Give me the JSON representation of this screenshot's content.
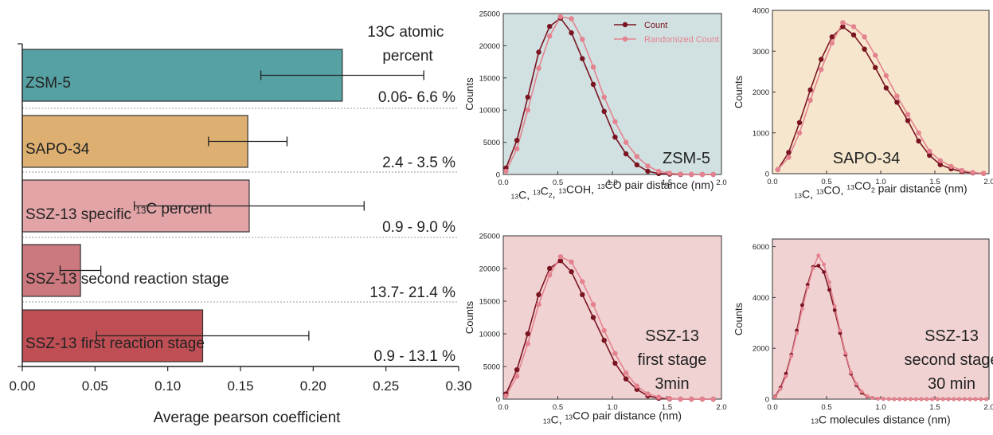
{
  "colors": {
    "zsm5": "#56a1a3",
    "sapo34": "#ddb071",
    "ssz_specific": "#e3a4a8",
    "ssz_second": "#cb787e",
    "ssz_first": "#c04f55",
    "count_line": "#7a1421",
    "random_line": "#e4838f",
    "bg_zsm5": "#d1e0e1",
    "bg_sapo34": "#f6e6cd",
    "bg_ssz": "#f0d2d2"
  },
  "chart_data": [
    {
      "type": "bar",
      "orientation": "horizontal",
      "xlabel": "Average pearson coefficient",
      "xlim": [
        0,
        0.3
      ],
      "xticks": [
        "0.00",
        "0.05",
        "0.10",
        "0.15",
        "0.20",
        "0.25",
        "0.30"
      ],
      "annotation_header": [
        "13C atomic",
        "percent"
      ],
      "categories": [
        "ZSM-5",
        "SAPO-34",
        "SSZ-13 specific 13C percent",
        "SSZ-13 second reaction stage",
        "SSZ-13 first reaction stage"
      ],
      "values": [
        0.22,
        0.155,
        0.156,
        0.04,
        0.124
      ],
      "error": [
        0.056,
        0.027,
        0.079,
        0.014,
        0.073
      ],
      "annotations": [
        "0.06- 6.6 %",
        "2.4 - 3.5 %",
        "0.9 - 9.0 %",
        "13.7- 21.4 %",
        "0.9 - 13.1 %"
      ]
    },
    {
      "type": "line",
      "panel_label": "ZSM-5",
      "xlabel": "13C, 13C2, 13COH, 13CO pair distance (nm)",
      "ylabel": "Counts",
      "xlim": [
        0,
        2.0
      ],
      "ylim": [
        0,
        25000
      ],
      "xticks": [
        "0.0",
        "0.5",
        "1.0",
        "1.5",
        "2.0"
      ],
      "yticks": [
        "0",
        "5000",
        "10000",
        "15000",
        "20000",
        "25000"
      ],
      "legend": [
        "Count",
        "Randomized Count"
      ],
      "x": [
        0.025,
        0.125,
        0.225,
        0.325,
        0.425,
        0.525,
        0.625,
        0.725,
        0.825,
        0.925,
        1.025,
        1.125,
        1.225,
        1.325,
        1.425,
        1.525,
        1.625,
        1.725,
        1.825,
        1.925
      ],
      "series": [
        {
          "name": "Count",
          "values": [
            1000,
            5300,
            12000,
            19000,
            23000,
            24300,
            22000,
            18000,
            14000,
            9800,
            5800,
            3200,
            1500,
            500,
            150,
            50,
            10,
            0,
            0,
            0
          ]
        },
        {
          "name": "Randomized Count",
          "values": [
            500,
            4000,
            10000,
            16500,
            21500,
            24500,
            24200,
            21000,
            16700,
            12000,
            8200,
            5000,
            2800,
            1300,
            500,
            200,
            80,
            20,
            0,
            0
          ]
        }
      ]
    },
    {
      "type": "line",
      "panel_label": "SAPO-34",
      "xlabel": "13C, 13CO, 13CO2 pair distance (nm)",
      "ylabel": "Counts",
      "xlim": [
        0,
        2.0
      ],
      "ylim": [
        0,
        4000
      ],
      "xticks": [
        "0.0",
        "0.5",
        "1.0",
        "1.5",
        "2.0"
      ],
      "yticks": [
        "0",
        "1000",
        "2000",
        "3000",
        "4000"
      ],
      "x": [
        0.05,
        0.15,
        0.25,
        0.35,
        0.45,
        0.55,
        0.65,
        0.75,
        0.85,
        0.95,
        1.05,
        1.15,
        1.25,
        1.35,
        1.45,
        1.55,
        1.65,
        1.75,
        1.85,
        1.95
      ],
      "series": [
        {
          "name": "Count",
          "values": [
            100,
            520,
            1250,
            2050,
            2800,
            3350,
            3600,
            3400,
            3050,
            2600,
            2100,
            1750,
            1300,
            800,
            450,
            220,
            120,
            50,
            20,
            5
          ]
        },
        {
          "name": "Randomized Count",
          "values": [
            100,
            400,
            1000,
            1800,
            2550,
            3200,
            3700,
            3600,
            3350,
            2900,
            2400,
            1900,
            1450,
            1000,
            550,
            320,
            180,
            80,
            30,
            10
          ]
        }
      ]
    },
    {
      "type": "line",
      "panel_label": [
        "SSZ-13",
        "first stage",
        "3min"
      ],
      "xlabel": "13C, 13CO pair distance (nm)",
      "ylabel": "Counts",
      "xlim": [
        0,
        2.0
      ],
      "ylim": [
        0,
        25000
      ],
      "xticks": [
        "0.0",
        "0.5",
        "1.0",
        "1.5",
        "2.0"
      ],
      "yticks": [
        "0",
        "5000",
        "10000",
        "15000",
        "20000",
        "25000"
      ],
      "x": [
        0.025,
        0.125,
        0.225,
        0.325,
        0.425,
        0.525,
        0.625,
        0.725,
        0.825,
        0.925,
        1.025,
        1.125,
        1.225,
        1.325,
        1.425,
        1.525,
        1.625,
        1.725,
        1.825,
        1.925
      ],
      "series": [
        {
          "name": "Count",
          "values": [
            800,
            4500,
            10000,
            16000,
            20000,
            21200,
            19500,
            16000,
            12500,
            9000,
            5500,
            3100,
            1500,
            500,
            150,
            50,
            10,
            0,
            0,
            0
          ]
        },
        {
          "name": "Randomized Count",
          "values": [
            500,
            3500,
            8500,
            14500,
            19000,
            21800,
            21000,
            18000,
            14500,
            10500,
            7000,
            4000,
            2000,
            800,
            300,
            100,
            30,
            10,
            0,
            0
          ]
        }
      ]
    },
    {
      "type": "line",
      "panel_label": [
        "SSZ-13",
        "second stage",
        "30 min"
      ],
      "xlabel": "13C molecules distance (nm)",
      "ylabel": "Counts",
      "xlim": [
        0,
        2.0
      ],
      "ylim": [
        0,
        6300
      ],
      "xticks": [
        "0.0",
        "0.5",
        "1.0",
        "1.5",
        "2.0"
      ],
      "yticks": [
        "0",
        "2000",
        "4000",
        "6000"
      ],
      "x": [
        0.025,
        0.075,
        0.125,
        0.175,
        0.225,
        0.275,
        0.325,
        0.375,
        0.425,
        0.475,
        0.525,
        0.575,
        0.625,
        0.675,
        0.725,
        0.775,
        0.825,
        0.875,
        0.925,
        0.975,
        1.025,
        1.075,
        1.125,
        1.175,
        1.225,
        1.275,
        1.325,
        1.375,
        1.425,
        1.475,
        1.525,
        1.575,
        1.625,
        1.675,
        1.725,
        1.775,
        1.825,
        1.875,
        1.925,
        1.975
      ],
      "series": [
        {
          "name": "Count",
          "values": [
            100,
            450,
            1000,
            1750,
            2700,
            3700,
            4500,
            5200,
            5250,
            5000,
            4300,
            3500,
            2600,
            1750,
            1000,
            550,
            250,
            100,
            50,
            20,
            10,
            5,
            0,
            0,
            0,
            0,
            0,
            0,
            0,
            0,
            0,
            0,
            0,
            0,
            0,
            0,
            0,
            0,
            0,
            0
          ]
        },
        {
          "name": "Randomized Count",
          "values": [
            80,
            400,
            900,
            1700,
            2600,
            3550,
            4400,
            5150,
            5650,
            5300,
            4600,
            3650,
            2700,
            1800,
            1050,
            600,
            300,
            120,
            50,
            20,
            10,
            5,
            0,
            0,
            0,
            0,
            0,
            0,
            0,
            0,
            0,
            0,
            0,
            0,
            0,
            0,
            0,
            0,
            0,
            0
          ]
        }
      ]
    }
  ]
}
